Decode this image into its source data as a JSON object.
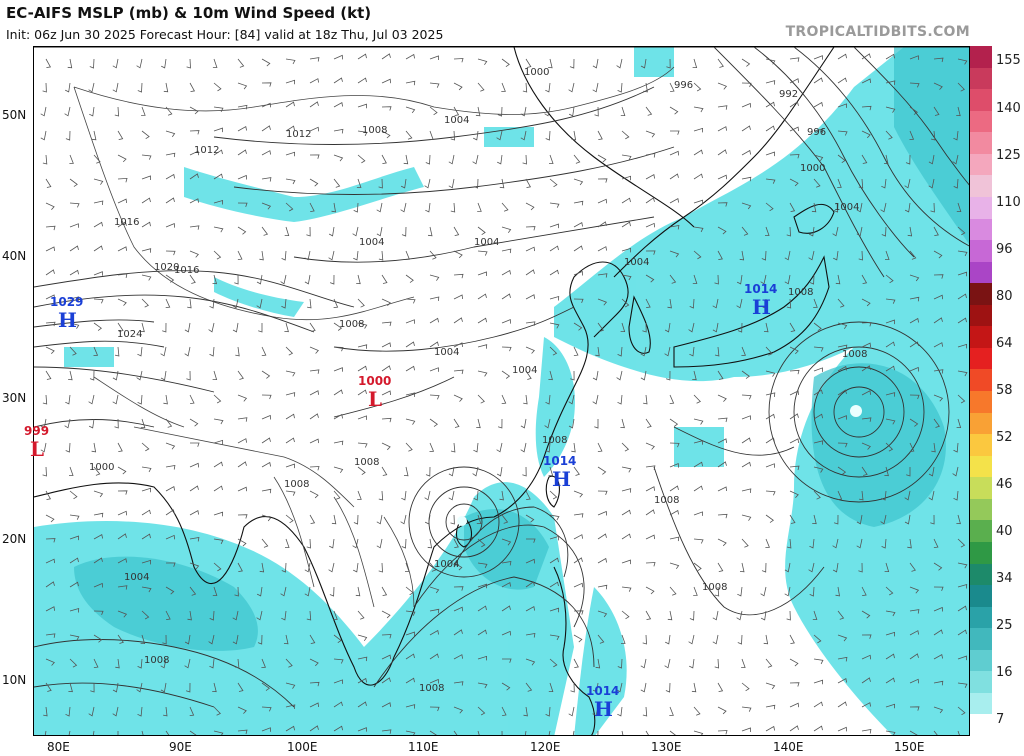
{
  "header": {
    "title": "EC-AIFS MSLP (mb) & 10m Wind Speed (kt)",
    "subtitle": "Init: 06z Jun 30 2025   Forecast Hour: [84]   valid at 18z Thu, Jul 03 2025",
    "brand": "TROPICALTIDBITS.COM"
  },
  "axes": {
    "lat_labels": [
      "50N",
      "40N",
      "30N",
      "20N",
      "10N"
    ],
    "lon_labels": [
      "80E",
      "90E",
      "100E",
      "110E",
      "120E",
      "130E",
      "140E",
      "150E"
    ]
  },
  "colorbar": {
    "labels": [
      "155",
      "140",
      "125",
      "110",
      "96",
      "80",
      "64",
      "58",
      "52",
      "46",
      "40",
      "34",
      "25",
      "16",
      "7"
    ],
    "colors": [
      "#b3214d",
      "#c93a5c",
      "#de4d6a",
      "#ec6a82",
      "#f28aa0",
      "#f4a7bd",
      "#f0c3d8",
      "#e8b2e8",
      "#d98ae0",
      "#c768d6",
      "#aa45c6",
      "#7a1313",
      "#9e1212",
      "#c41616",
      "#e52020",
      "#f04a26",
      "#f7782b",
      "#f9a135",
      "#fbc83f",
      "#f4e24a",
      "#c8dd5a",
      "#94c95a",
      "#5aaf4e",
      "#2f9945",
      "#1d8a6a",
      "#1a8a8d",
      "#2aa2a8",
      "#41b8bd",
      "#5fcdd0",
      "#80e0e0",
      "#a8eeee",
      "#ffffff"
    ]
  },
  "pressure_centers": [
    {
      "kind": "H",
      "value": "1029"
    },
    {
      "kind": "L",
      "value": "999"
    },
    {
      "kind": "L",
      "value": "1000"
    },
    {
      "kind": "H",
      "value": "1014"
    },
    {
      "kind": "H",
      "value": "1014"
    },
    {
      "kind": "H",
      "value": "1014"
    }
  ],
  "isobar_labels": [
    "1000",
    "996",
    "992",
    "996",
    "1000",
    "1004",
    "1008",
    "1012",
    "1016",
    "1020",
    "1024",
    "1004",
    "1004",
    "1008",
    "1008",
    "1004",
    "1008",
    "1008",
    "1008",
    "1008",
    "1008",
    "1004",
    "1008",
    "1012",
    "1016",
    "1008",
    "1000",
    "1004",
    "1004",
    "1008",
    "1004",
    "1004"
  ],
  "colors": {
    "shading": "#5fe0e6",
    "shading_dark": "#3fc6cf",
    "high": "#1a3fd6",
    "low": "#d4192c"
  }
}
